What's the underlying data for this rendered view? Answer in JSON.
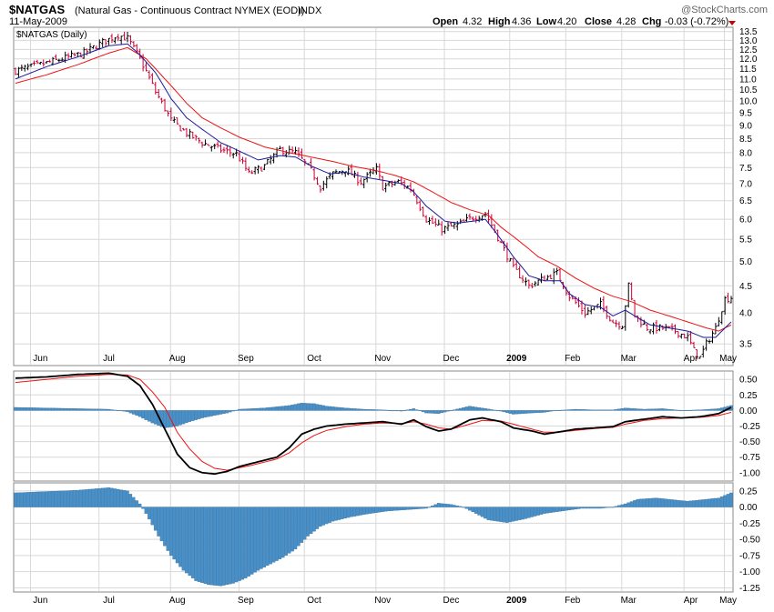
{
  "header": {
    "symbol": "$NATGAS",
    "description": "(Natural Gas - Continuous Contract NYMEX (EOD))",
    "exchange": "INDX",
    "date": "11-May-2009",
    "watermark": "@StockCharts.com",
    "quote": [
      {
        "label": "Open",
        "value": "4.32"
      },
      {
        "label": "High",
        "value": "4.36"
      },
      {
        "label": "Low",
        "value": "4.20"
      },
      {
        "label": "Close",
        "value": "4.28"
      },
      {
        "label": "Chg",
        "value": "-0.03 (-0.72%)"
      }
    ],
    "chg_arrow_color": "#cc0000"
  },
  "colors": {
    "up_bar": "#000000",
    "down_bar": "#cc0033",
    "ma_short": "#1a1a99",
    "ma_long": "#ee1111",
    "histogram": "#4a90c8",
    "macd_line": "#000000",
    "signal_line": "#ee1111",
    "grid": "#d8d8d8"
  },
  "chart_data": [
    {
      "type": "candlestick",
      "title": "$NATGAS (Daily)",
      "ylim": [
        3.2,
        13.7
      ],
      "yscale": "log",
      "yticks": [
        "13.5",
        "13.0",
        "12.5",
        "12.0",
        "11.5",
        "11.0",
        "10.5",
        "10.0",
        "9.5",
        "9.0",
        "8.5",
        "8.0",
        "7.5",
        "7.0",
        "6.5",
        "6.0",
        "5.5",
        "5.0",
        "4.5",
        "4.0",
        "3.5"
      ],
      "x_labels": [
        "Jun",
        "Jul",
        "Aug",
        "Sep",
        "Oct",
        "Nov",
        "Dec",
        "2009",
        "Feb",
        "Mar",
        "Apr",
        "May"
      ],
      "close_path": [
        [
          0,
          11.4
        ],
        [
          8,
          11.7
        ],
        [
          15,
          12.0
        ],
        [
          22,
          12.3
        ],
        [
          28,
          12.9
        ],
        [
          33,
          13.3
        ],
        [
          36,
          13.1
        ],
        [
          40,
          12.0
        ],
        [
          45,
          10.4
        ],
        [
          50,
          9.2
        ],
        [
          55,
          8.7
        ],
        [
          60,
          8.35
        ],
        [
          66,
          8.1
        ],
        [
          71,
          7.95
        ],
        [
          75,
          7.3
        ],
        [
          80,
          7.55
        ],
        [
          85,
          8.1
        ],
        [
          90,
          8.0
        ],
        [
          95,
          7.4
        ],
        [
          98,
          6.9
        ],
        [
          102,
          7.3
        ],
        [
          106,
          7.45
        ],
        [
          111,
          7.05
        ],
        [
          116,
          7.45
        ],
        [
          118,
          6.9
        ],
        [
          123,
          7.05
        ],
        [
          127,
          6.85
        ],
        [
          132,
          6.0
        ],
        [
          137,
          5.75
        ],
        [
          142,
          5.85
        ],
        [
          147,
          6.05
        ],
        [
          151,
          6.15
        ],
        [
          156,
          5.4
        ],
        [
          160,
          4.85
        ],
        [
          165,
          4.5
        ],
        [
          170,
          4.65
        ],
        [
          174,
          4.75
        ],
        [
          178,
          4.3
        ],
        [
          183,
          4.0
        ],
        [
          188,
          4.15
        ],
        [
          192,
          3.85
        ],
        [
          195,
          3.8
        ],
        [
          197,
          4.5
        ],
        [
          199,
          3.95
        ],
        [
          203,
          3.75
        ],
        [
          208,
          3.75
        ],
        [
          212,
          3.7
        ],
        [
          216,
          3.6
        ],
        [
          218,
          3.4
        ],
        [
          220,
          3.3
        ],
        [
          222,
          3.5
        ],
        [
          225,
          3.75
        ],
        [
          228,
          4.25
        ],
        [
          230,
          4.28
        ]
      ],
      "ma_short_path": [
        [
          0,
          11.0
        ],
        [
          10,
          11.6
        ],
        [
          20,
          12.1
        ],
        [
          30,
          12.7
        ],
        [
          36,
          12.8
        ],
        [
          40,
          12.2
        ],
        [
          45,
          11.3
        ],
        [
          50,
          10.1
        ],
        [
          55,
          9.3
        ],
        [
          60,
          8.85
        ],
        [
          66,
          8.35
        ],
        [
          71,
          8.1
        ],
        [
          78,
          7.75
        ],
        [
          85,
          7.9
        ],
        [
          90,
          7.85
        ],
        [
          95,
          7.55
        ],
        [
          101,
          7.3
        ],
        [
          106,
          7.35
        ],
        [
          112,
          7.2
        ],
        [
          118,
          7.1
        ],
        [
          124,
          7.0
        ],
        [
          128,
          6.75
        ],
        [
          132,
          6.35
        ],
        [
          138,
          5.95
        ],
        [
          142,
          5.9
        ],
        [
          147,
          5.95
        ],
        [
          151,
          6.0
        ],
        [
          155,
          5.6
        ],
        [
          160,
          5.1
        ],
        [
          165,
          4.7
        ],
        [
          170,
          4.6
        ],
        [
          175,
          4.6
        ],
        [
          178,
          4.35
        ],
        [
          183,
          4.15
        ],
        [
          188,
          4.1
        ],
        [
          192,
          3.95
        ],
        [
          196,
          4.05
        ],
        [
          199,
          3.95
        ],
        [
          204,
          3.8
        ],
        [
          210,
          3.75
        ],
        [
          216,
          3.7
        ],
        [
          221,
          3.6
        ],
        [
          225,
          3.6
        ],
        [
          230,
          3.85
        ]
      ],
      "ma_long_path": [
        [
          0,
          10.8
        ],
        [
          10,
          11.2
        ],
        [
          20,
          11.7
        ],
        [
          30,
          12.3
        ],
        [
          36,
          12.6
        ],
        [
          42,
          12.0
        ],
        [
          48,
          11.0
        ],
        [
          55,
          9.9
        ],
        [
          60,
          9.3
        ],
        [
          66,
          8.9
        ],
        [
          72,
          8.55
        ],
        [
          80,
          8.2
        ],
        [
          88,
          8.0
        ],
        [
          95,
          7.85
        ],
        [
          102,
          7.7
        ],
        [
          108,
          7.55
        ],
        [
          116,
          7.4
        ],
        [
          122,
          7.25
        ],
        [
          128,
          7.05
        ],
        [
          134,
          6.75
        ],
        [
          140,
          6.45
        ],
        [
          146,
          6.25
        ],
        [
          152,
          6.1
        ],
        [
          156,
          5.8
        ],
        [
          162,
          5.45
        ],
        [
          168,
          5.1
        ],
        [
          174,
          4.9
        ],
        [
          180,
          4.65
        ],
        [
          186,
          4.45
        ],
        [
          192,
          4.3
        ],
        [
          198,
          4.2
        ],
        [
          204,
          4.05
        ],
        [
          210,
          3.95
        ],
        [
          216,
          3.85
        ],
        [
          222,
          3.75
        ],
        [
          226,
          3.7
        ],
        [
          230,
          3.8
        ]
      ]
    },
    {
      "type": "macd",
      "ylim": [
        -1.12,
        0.62
      ],
      "yticks": [
        "0.50",
        "0.25",
        "0.00",
        "-0.25",
        "-0.50",
        "-0.75",
        "-1.00"
      ],
      "macd_path": [
        [
          0,
          0.52
        ],
        [
          10,
          0.54
        ],
        [
          20,
          0.58
        ],
        [
          30,
          0.6
        ],
        [
          36,
          0.55
        ],
        [
          40,
          0.4
        ],
        [
          44,
          0.1
        ],
        [
          48,
          -0.3
        ],
        [
          52,
          -0.7
        ],
        [
          56,
          -0.92
        ],
        [
          60,
          -1.0
        ],
        [
          64,
          -1.02
        ],
        [
          68,
          -0.98
        ],
        [
          72,
          -0.9
        ],
        [
          76,
          -0.85
        ],
        [
          80,
          -0.8
        ],
        [
          84,
          -0.75
        ],
        [
          88,
          -0.6
        ],
        [
          92,
          -0.38
        ],
        [
          96,
          -0.3
        ],
        [
          100,
          -0.25
        ],
        [
          106,
          -0.22
        ],
        [
          112,
          -0.2
        ],
        [
          118,
          -0.18
        ],
        [
          124,
          -0.22
        ],
        [
          128,
          -0.15
        ],
        [
          132,
          -0.26
        ],
        [
          136,
          -0.33
        ],
        [
          140,
          -0.3
        ],
        [
          146,
          -0.15
        ],
        [
          150,
          -0.12
        ],
        [
          156,
          -0.18
        ],
        [
          160,
          -0.28
        ],
        [
          166,
          -0.33
        ],
        [
          170,
          -0.38
        ],
        [
          174,
          -0.35
        ],
        [
          180,
          -0.3
        ],
        [
          186,
          -0.28
        ],
        [
          192,
          -0.26
        ],
        [
          196,
          -0.18
        ],
        [
          202,
          -0.14
        ],
        [
          208,
          -0.1
        ],
        [
          214,
          -0.12
        ],
        [
          220,
          -0.1
        ],
        [
          226,
          -0.05
        ],
        [
          230,
          0.05
        ]
      ],
      "signal_path": [
        [
          0,
          0.45
        ],
        [
          10,
          0.5
        ],
        [
          20,
          0.55
        ],
        [
          30,
          0.58
        ],
        [
          36,
          0.57
        ],
        [
          40,
          0.5
        ],
        [
          44,
          0.3
        ],
        [
          48,
          0.05
        ],
        [
          52,
          -0.35
        ],
        [
          56,
          -0.62
        ],
        [
          60,
          -0.82
        ],
        [
          64,
          -0.93
        ],
        [
          68,
          -0.96
        ],
        [
          72,
          -0.92
        ],
        [
          76,
          -0.88
        ],
        [
          80,
          -0.83
        ],
        [
          84,
          -0.78
        ],
        [
          88,
          -0.68
        ],
        [
          92,
          -0.52
        ],
        [
          96,
          -0.4
        ],
        [
          100,
          -0.32
        ],
        [
          106,
          -0.26
        ],
        [
          112,
          -0.22
        ],
        [
          118,
          -0.2
        ],
        [
          124,
          -0.21
        ],
        [
          128,
          -0.18
        ],
        [
          132,
          -0.22
        ],
        [
          136,
          -0.28
        ],
        [
          140,
          -0.3
        ],
        [
          146,
          -0.22
        ],
        [
          150,
          -0.16
        ],
        [
          156,
          -0.17
        ],
        [
          160,
          -0.22
        ],
        [
          166,
          -0.3
        ],
        [
          170,
          -0.35
        ],
        [
          174,
          -0.35
        ],
        [
          180,
          -0.32
        ],
        [
          186,
          -0.29
        ],
        [
          192,
          -0.27
        ],
        [
          196,
          -0.22
        ],
        [
          202,
          -0.16
        ],
        [
          208,
          -0.13
        ],
        [
          214,
          -0.12
        ],
        [
          220,
          -0.11
        ],
        [
          226,
          -0.08
        ],
        [
          230,
          -0.03
        ]
      ],
      "histogram_path": [
        [
          0,
          0.05
        ],
        [
          20,
          0.03
        ],
        [
          30,
          0.02
        ],
        [
          36,
          -0.02
        ],
        [
          40,
          -0.1
        ],
        [
          44,
          -0.2
        ],
        [
          48,
          -0.28
        ],
        [
          52,
          -0.25
        ],
        [
          56,
          -0.18
        ],
        [
          60,
          -0.12
        ],
        [
          64,
          -0.08
        ],
        [
          68,
          -0.04
        ],
        [
          72,
          0.02
        ],
        [
          80,
          0.04
        ],
        [
          88,
          0.08
        ],
        [
          92,
          0.12
        ],
        [
          96,
          0.11
        ],
        [
          100,
          0.07
        ],
        [
          106,
          0.04
        ],
        [
          112,
          0.02
        ],
        [
          118,
          0.01
        ],
        [
          124,
          -0.01
        ],
        [
          128,
          0.03
        ],
        [
          132,
          -0.04
        ],
        [
          136,
          -0.05
        ],
        [
          140,
          0.0
        ],
        [
          146,
          0.07
        ],
        [
          150,
          0.04
        ],
        [
          156,
          -0.01
        ],
        [
          160,
          -0.06
        ],
        [
          166,
          -0.04
        ],
        [
          170,
          -0.03
        ],
        [
          174,
          0.0
        ],
        [
          180,
          0.02
        ],
        [
          186,
          0.01
        ],
        [
          192,
          0.01
        ],
        [
          196,
          0.04
        ],
        [
          202,
          0.02
        ],
        [
          208,
          0.03
        ],
        [
          214,
          0.0
        ],
        [
          220,
          0.01
        ],
        [
          226,
          0.03
        ],
        [
          230,
          0.08
        ]
      ]
    },
    {
      "type": "histogram",
      "ylim": [
        -1.3,
        0.36
      ],
      "yticks": [
        "0.25",
        "0.00",
        "-0.25",
        "-0.50",
        "-0.75",
        "-1.00",
        "-1.25"
      ],
      "values_path": [
        [
          0,
          0.22
        ],
        [
          10,
          0.24
        ],
        [
          20,
          0.26
        ],
        [
          30,
          0.3
        ],
        [
          36,
          0.25
        ],
        [
          40,
          0.05
        ],
        [
          42,
          -0.1
        ],
        [
          46,
          -0.45
        ],
        [
          50,
          -0.75
        ],
        [
          54,
          -0.98
        ],
        [
          58,
          -1.14
        ],
        [
          62,
          -1.2
        ],
        [
          66,
          -1.22
        ],
        [
          70,
          -1.18
        ],
        [
          74,
          -1.1
        ],
        [
          78,
          -0.98
        ],
        [
          82,
          -0.88
        ],
        [
          86,
          -0.78
        ],
        [
          90,
          -0.65
        ],
        [
          94,
          -0.45
        ],
        [
          98,
          -0.3
        ],
        [
          102,
          -0.22
        ],
        [
          108,
          -0.15
        ],
        [
          114,
          -0.1
        ],
        [
          120,
          -0.06
        ],
        [
          126,
          -0.04
        ],
        [
          132,
          -0.02
        ],
        [
          136,
          0.06
        ],
        [
          140,
          0.04
        ],
        [
          144,
          0.0
        ],
        [
          148,
          -0.1
        ],
        [
          152,
          -0.2
        ],
        [
          158,
          -0.24
        ],
        [
          164,
          -0.18
        ],
        [
          170,
          -0.1
        ],
        [
          176,
          -0.06
        ],
        [
          182,
          -0.02
        ],
        [
          188,
          -0.02
        ],
        [
          192,
          0.0
        ],
        [
          196,
          0.05
        ],
        [
          200,
          0.12
        ],
        [
          206,
          0.14
        ],
        [
          212,
          0.11
        ],
        [
          216,
          0.09
        ],
        [
          220,
          0.11
        ],
        [
          226,
          0.14
        ],
        [
          230,
          0.22
        ]
      ]
    }
  ]
}
